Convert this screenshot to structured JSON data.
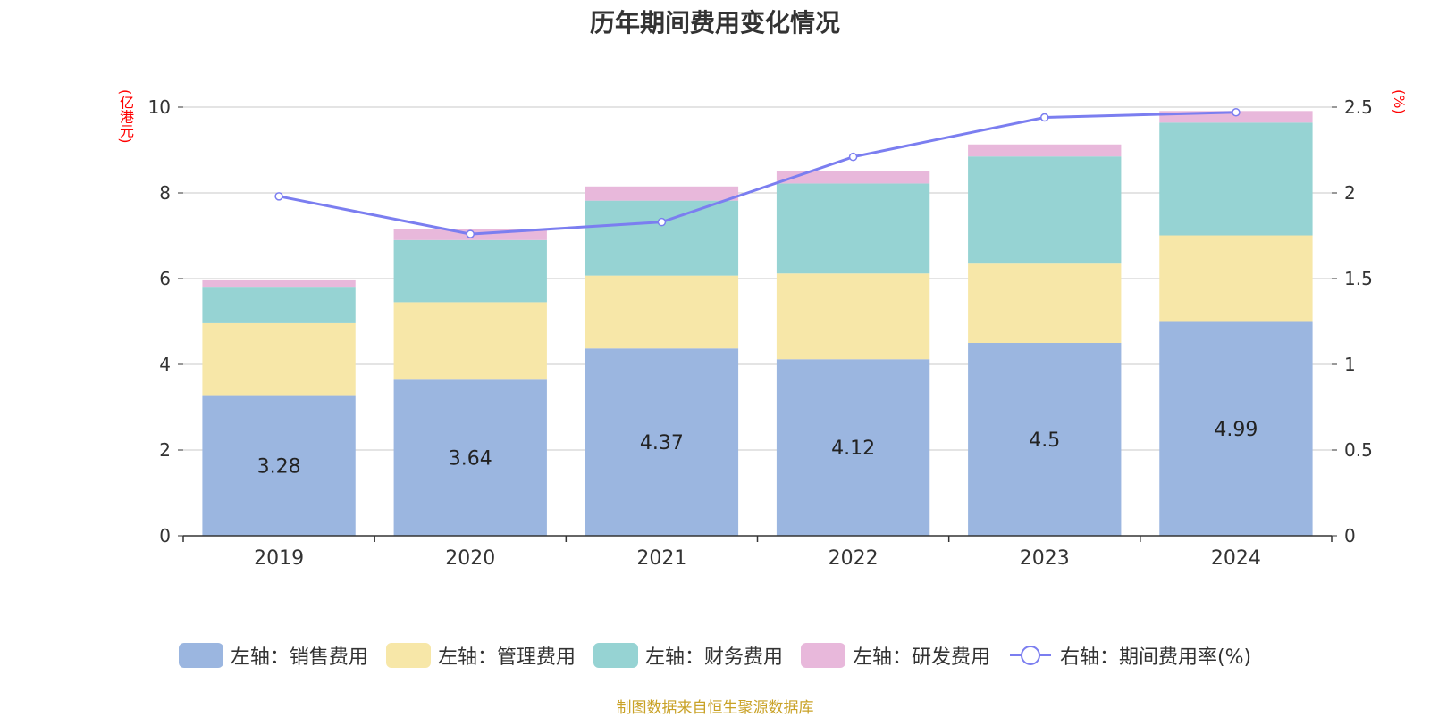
{
  "title": "历年期间费用变化情况",
  "left_unit": "(亿港元)",
  "right_unit": "(%)",
  "source": "制图数据来自恒生聚源数据库",
  "chart_data": {
    "type": "bar",
    "stacked": true,
    "categories": [
      "2019",
      "2020",
      "2021",
      "2022",
      "2023",
      "2024"
    ],
    "series": [
      {
        "name": "左轴：销售费用",
        "axis": "left",
        "color": "#9bb6e0",
        "values": [
          3.28,
          3.64,
          4.37,
          4.12,
          4.5,
          4.99
        ],
        "labels": [
          "3.28",
          "3.64",
          "4.37",
          "4.12",
          "4.5",
          "4.99"
        ]
      },
      {
        "name": "左轴：管理费用",
        "axis": "left",
        "color": "#f7e7a8",
        "values": [
          1.68,
          1.81,
          1.7,
          2.0,
          1.85,
          2.02
        ]
      },
      {
        "name": "左轴：财务费用",
        "axis": "left",
        "color": "#96d3d3",
        "values": [
          0.85,
          1.45,
          1.75,
          2.1,
          2.5,
          2.63
        ]
      },
      {
        "name": "左轴：研发费用",
        "axis": "left",
        "color": "#e8b8db",
        "values": [
          0.15,
          0.25,
          0.33,
          0.28,
          0.28,
          0.27
        ]
      },
      {
        "name": "右轴：期间费用率(%)",
        "axis": "right",
        "type": "line",
        "color": "#7b7ef0",
        "values": [
          1.98,
          1.76,
          1.83,
          2.21,
          2.44,
          2.47
        ]
      }
    ],
    "left_axis": {
      "min": 0,
      "max": 10,
      "ticks": [
        "0",
        "2",
        "4",
        "6",
        "8",
        "10"
      ]
    },
    "right_axis": {
      "min": 0,
      "max": 2.5,
      "ticks": [
        "0",
        "0.5",
        "1",
        "1.5",
        "2",
        "2.5"
      ]
    },
    "grid": true,
    "legend_position": "bottom"
  }
}
